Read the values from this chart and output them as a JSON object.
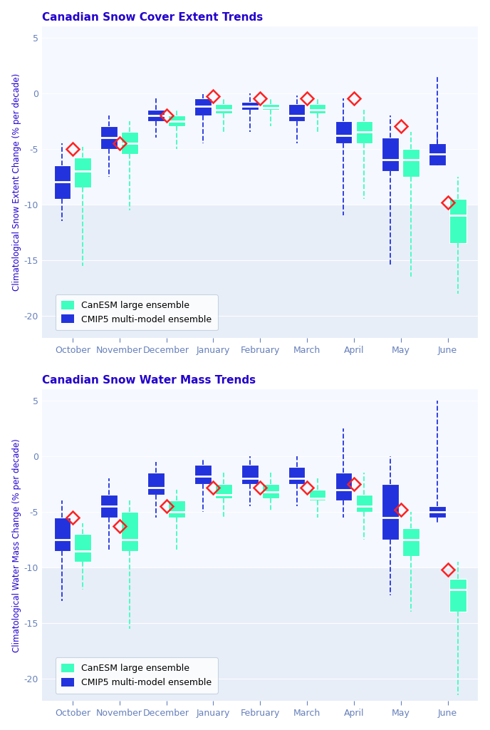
{
  "months": [
    "October",
    "November",
    "December",
    "January",
    "February",
    "March",
    "April",
    "May",
    "June"
  ],
  "panel1": {
    "title": "Canadian Snow Cover Extent Trends",
    "ylabel": "Climatological Snow Extent Change (% per decade)",
    "canesm": {
      "whislo": [
        -15.5,
        -10.5,
        -5.0,
        -3.5,
        -3.0,
        -3.5,
        -9.5,
        -16.5,
        -18.0
      ],
      "q1": [
        -8.5,
        -5.5,
        -3.0,
        -1.8,
        -1.5,
        -1.8,
        -4.5,
        -7.5,
        -13.5
      ],
      "med": [
        -7.0,
        -4.5,
        -2.5,
        -1.5,
        -1.3,
        -1.5,
        -3.5,
        -6.0,
        -11.0
      ],
      "q3": [
        -5.8,
        -3.5,
        -2.0,
        -1.0,
        -1.0,
        -1.0,
        -2.5,
        -5.0,
        -9.5
      ],
      "whishi": [
        -4.8,
        -2.5,
        -1.5,
        -0.5,
        -0.5,
        -0.5,
        -1.5,
        -3.5,
        -7.5
      ]
    },
    "cmip5": {
      "whislo": [
        -11.5,
        -7.5,
        -4.0,
        -4.5,
        -3.5,
        -4.5,
        -11.0,
        -15.5,
        -3.5
      ],
      "q1": [
        -9.5,
        -5.0,
        -2.5,
        -2.0,
        -1.5,
        -2.5,
        -4.5,
        -7.0,
        -6.5
      ],
      "med": [
        -8.0,
        -4.0,
        -2.0,
        -1.2,
        -1.2,
        -2.0,
        -3.8,
        -6.0,
        -5.5
      ],
      "q3": [
        -6.5,
        -3.0,
        -1.5,
        -0.5,
        -0.8,
        -1.0,
        -2.5,
        -4.0,
        -4.5
      ],
      "whishi": [
        -4.5,
        -2.0,
        -0.5,
        -0.1,
        0.0,
        -0.2,
        -0.5,
        -2.0,
        1.5
      ]
    },
    "obs": [
      -5.0,
      -4.5,
      -2.0,
      -0.3,
      -0.5,
      -0.5,
      -0.5,
      -3.0,
      -9.8
    ],
    "ylim": [
      -22,
      6
    ],
    "yticks": [
      -20,
      -15,
      -10,
      -5,
      0,
      5
    ]
  },
  "panel2": {
    "title": "Canadian Snow Water Mass Trends",
    "ylabel": "Climatological Water Mass Change (% per decade)",
    "canesm": {
      "whislo": [
        -12.0,
        -15.5,
        -8.5,
        -5.5,
        -5.0,
        -5.5,
        -7.5,
        -14.0,
        -21.5
      ],
      "q1": [
        -9.5,
        -8.5,
        -5.5,
        -3.8,
        -3.8,
        -4.0,
        -5.0,
        -9.0,
        -14.0
      ],
      "med": [
        -8.5,
        -7.5,
        -5.0,
        -3.5,
        -3.2,
        -3.8,
        -4.5,
        -7.5,
        -12.0
      ],
      "q3": [
        -7.0,
        -5.0,
        -4.0,
        -2.5,
        -2.5,
        -3.0,
        -3.5,
        -6.5,
        -11.0
      ],
      "whishi": [
        -6.0,
        -4.0,
        -3.0,
        -1.5,
        -1.5,
        -2.0,
        -1.5,
        -5.0,
        -9.5
      ]
    },
    "cmip5": {
      "whislo": [
        -13.0,
        -8.5,
        -5.5,
        -5.0,
        -4.5,
        -4.5,
        -5.5,
        -12.5,
        -6.0
      ],
      "q1": [
        -8.5,
        -5.5,
        -3.5,
        -2.5,
        -2.5,
        -2.5,
        -4.0,
        -7.5,
        -5.5
      ],
      "med": [
        -7.5,
        -4.5,
        -2.8,
        -1.8,
        -2.0,
        -2.0,
        -3.0,
        -5.5,
        -5.0
      ],
      "q3": [
        -5.5,
        -3.5,
        -1.5,
        -0.8,
        -0.8,
        -1.0,
        -1.5,
        -2.5,
        -4.5
      ],
      "whishi": [
        -4.0,
        -2.0,
        -0.5,
        -0.2,
        0.0,
        0.0,
        2.5,
        0.0,
        5.0
      ]
    },
    "obs": [
      -5.5,
      -6.3,
      -4.5,
      -2.8,
      -2.8,
      -2.8,
      -2.5,
      -4.8,
      -10.2
    ],
    "ylim": [
      -22,
      6
    ],
    "yticks": [
      -20,
      -15,
      -10,
      -5,
      0,
      5
    ]
  },
  "canesm_color": "#3DFFC0",
  "cmip5_color": "#2233DD",
  "obs_color": "#FF2222",
  "bg_outer": "#E8EEF8",
  "bg_inner": "#F5F8FF",
  "title_color": "#2200CC",
  "ylabel_color": "#2200CC",
  "tick_label_color": "#6680BB",
  "legend_edge": "#BBCCDD"
}
